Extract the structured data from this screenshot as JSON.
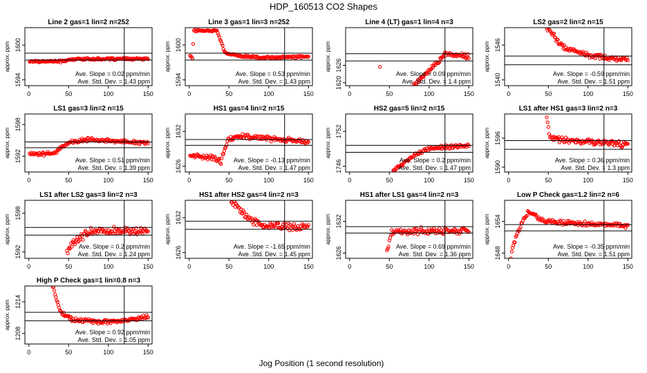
{
  "figure": {
    "title": "HDP_160513  CO2 Shapes",
    "xlabel": "Jog Position (1 second resolution)"
  },
  "style": {
    "point_color": "#ff0000",
    "line_color": "#000000"
  },
  "chart_data": [
    {
      "type": "scatter",
      "title": "Line 2 gas=1 lin=2 n=252",
      "ylabel": "approx. ppm",
      "xlim": [
        -5,
        155
      ],
      "ylim": [
        1593,
        1603
      ],
      "xticks": [
        0,
        50,
        100,
        150
      ],
      "yticks": [
        1594,
        1600
      ],
      "hlines": [
        1598.6,
        1597.4
      ],
      "vline": 120,
      "slope_text": "Ave. Slope = 0.02  ppm/min",
      "std_text": "Ave. Std. Dev. = 1.43 ppm",
      "series": [
        {
          "shape": "flat",
          "x0": 1,
          "x1": 150,
          "segments": [
            [
              0,
              1597.2
            ],
            [
              40,
              1597.2
            ],
            [
              60,
              1597.6
            ],
            [
              150,
              1597.6
            ]
          ],
          "noise": 0.15
        }
      ]
    },
    {
      "type": "scatter",
      "title": "Line 3 gas=1 lin=3 n=252",
      "ylabel": "approx. ppm",
      "xlim": [
        -5,
        155
      ],
      "ylim": [
        1593,
        1603
      ],
      "xticks": [
        0,
        50,
        100,
        150
      ],
      "yticks": [
        1594,
        1600
      ],
      "hlines": [
        1598.6,
        1597.4
      ],
      "vline": 120,
      "slope_text": "Ave. Slope = 0.53  ppm/min",
      "std_text": "Ave. Std. Dev. = 1.43 ppm",
      "series": [
        {
          "shape": "curve",
          "x0": 1,
          "x1": 150,
          "segments": [
            [
              1,
              1598.2
            ],
            [
              4,
              1597.8
            ],
            [
              6,
              1602.5
            ],
            [
              35,
              1602.5
            ],
            [
              45,
              1598.6
            ],
            [
              60,
              1598.2
            ],
            [
              90,
              1597.8
            ],
            [
              150,
              1598.0
            ]
          ],
          "noise": 0.15
        }
      ]
    },
    {
      "type": "scatter",
      "title": "Line 4 (LT) gas=1 lin=4 n=3",
      "ylabel": "approx. ppm",
      "xlim": [
        -5,
        155
      ],
      "ylim": [
        1619,
        1639
      ],
      "xticks": [
        0,
        50,
        100,
        150
      ],
      "yticks": [
        1620,
        1626
      ],
      "hlines": [
        1630.0,
        1627.5
      ],
      "vline": 120,
      "slope_text": "Ave. Slope = 0.09  ppm/min",
      "std_text": "Ave. Std. Dev. = 1.4 ppm",
      "series": [
        {
          "shape": "curve",
          "x0": 80,
          "x1": 150,
          "segments": [
            [
              80,
              1619
            ],
            [
              100,
              1624
            ],
            [
              120,
              1630
            ],
            [
              150,
              1629
            ]
          ],
          "noise": 0.7,
          "extra": [
            [
              38,
              1625.5
            ]
          ]
        }
      ]
    },
    {
      "type": "scatter",
      "title": "LS2 gas=2 lin=2 n=15",
      "ylabel": "approx. ppm",
      "xlim": [
        -5,
        155
      ],
      "ylim": [
        1539,
        1549
      ],
      "xticks": [
        0,
        50,
        100,
        150
      ],
      "yticks": [
        1540,
        1546
      ],
      "hlines": [
        1544.1,
        1542.6
      ],
      "vline": 120,
      "slope_text": "Ave. Slope = -0.59  ppm/min",
      "std_text": "Ave. Std. Dev. = 1.51 ppm",
      "series": [
        {
          "shape": "curve",
          "x0": 48,
          "x1": 150,
          "segments": [
            [
              48,
              1549
            ],
            [
              70,
              1545.5
            ],
            [
              100,
              1544.2
            ],
            [
              150,
              1543.4
            ]
          ],
          "noise": 0.35
        }
      ]
    },
    {
      "type": "scatter",
      "title": "LS1 gas=3 lin=2 n=15",
      "ylabel": "approx. ppm",
      "xlim": [
        -5,
        155
      ],
      "ylim": [
        1589,
        1600
      ],
      "xticks": [
        0,
        50,
        100,
        150
      ],
      "yticks": [
        1592,
        1598
      ],
      "hlines": [
        1594.7,
        1593.6
      ],
      "vline": 120,
      "slope_text": "Ave. Slope = 0.51  ppm/min",
      "std_text": "Ave. Std. Dev. = 1.39 ppm",
      "series": [
        {
          "shape": "curve",
          "x0": 1,
          "x1": 150,
          "segments": [
            [
              1,
              1592.5
            ],
            [
              30,
              1592.5
            ],
            [
              50,
              1594.6
            ],
            [
              75,
              1595.2
            ],
            [
              150,
              1594.5
            ]
          ],
          "noise": 0.3
        }
      ]
    },
    {
      "type": "scatter",
      "title": "HS1 gas=4 lin=2 n=15",
      "ylabel": "approx. ppm",
      "xlim": [
        -5,
        155
      ],
      "ylim": [
        1625,
        1635
      ],
      "xticks": [
        0,
        50,
        100,
        150
      ],
      "yticks": [
        1626,
        1632
      ],
      "hlines": [
        1630.6,
        1629.6
      ],
      "vline": 120,
      "slope_text": "Ave. Slope = -0.13  ppm/min",
      "std_text": "Ave. Std. Dev. = 1.47 ppm",
      "series": [
        {
          "shape": "curve",
          "x0": 1,
          "x1": 150,
          "segments": [
            [
              1,
              1627.8
            ],
            [
              30,
              1627.5
            ],
            [
              40,
              1626.8
            ],
            [
              48,
              1630.4
            ],
            [
              60,
              1631.2
            ],
            [
              150,
              1630.2
            ]
          ],
          "noise": 0.35
        }
      ]
    },
    {
      "type": "scatter",
      "title": "HS2 gas=5 lin=2 n=15",
      "ylabel": "approx. ppm",
      "xlim": [
        -5,
        155
      ],
      "ylim": [
        1745,
        1755
      ],
      "xticks": [
        0,
        50,
        100,
        150
      ],
      "yticks": [
        1746,
        1752
      ],
      "hlines": [
        1749.6,
        1748.4
      ],
      "vline": 120,
      "slope_text": "Ave. Slope = 0.2  ppm/min",
      "std_text": "Ave. Std. Dev. = 1.47 ppm",
      "series": [
        {
          "shape": "curve",
          "x0": 55,
          "x1": 150,
          "segments": [
            [
              55,
              1745.2
            ],
            [
              80,
              1747.8
            ],
            [
              100,
              1749.1
            ],
            [
              150,
              1749.6
            ]
          ],
          "noise": 0.25
        }
      ]
    },
    {
      "type": "scatter",
      "title": "LS1 after HS1 gas=3 lin=2 n=3",
      "ylabel": "approx. ppm",
      "xlim": [
        -5,
        155
      ],
      "ylim": [
        1589,
        1601
      ],
      "xticks": [
        0,
        50,
        100,
        150
      ],
      "yticks": [
        1590,
        1596
      ],
      "hlines": [
        1595.5,
        1593.7
      ],
      "vline": 120,
      "slope_text": "Ave. Slope = 0.36  ppm/min",
      "std_text": "Ave. Std. Dev. = 1.3 ppm",
      "series": [
        {
          "shape": "curve",
          "x0": 48,
          "x1": 150,
          "segments": [
            [
              48,
              1600
            ],
            [
              52,
              1596
            ],
            [
              70,
              1595.6
            ],
            [
              150,
              1594.6
            ]
          ],
          "noise": 0.5
        }
      ]
    },
    {
      "type": "scatter",
      "title": "LS1 after LS2 gas=3 lin=2 n=3",
      "ylabel": "approx. ppm",
      "xlim": [
        -5,
        155
      ],
      "ylim": [
        1591,
        1600
      ],
      "xticks": [
        0,
        50,
        100,
        150
      ],
      "yticks": [
        1592,
        1598
      ],
      "hlines": [
        1595.8,
        1594.6
      ],
      "vline": 120,
      "slope_text": "Ave. Slope = 0.2  ppm/min",
      "std_text": "Ave. Std. Dev. = 1.24 ppm",
      "series": [
        {
          "shape": "curve",
          "x0": 48,
          "x1": 150,
          "segments": [
            [
              48,
              1592
            ],
            [
              60,
              1594
            ],
            [
              80,
              1595.2
            ],
            [
              150,
              1595.2
            ]
          ],
          "noise": 0.55
        }
      ]
    },
    {
      "type": "scatter",
      "title": "HS1 after HS2 gas=4 lin=2 n=3",
      "ylabel": "approx. ppm",
      "xlim": [
        -5,
        155
      ],
      "ylim": [
        1625,
        1635
      ],
      "xticks": [
        0,
        50,
        100,
        150
      ],
      "yticks": [
        1626,
        1632
      ],
      "hlines": [
        1631.4,
        1630.0
      ],
      "vline": 120,
      "slope_text": "Ave. Slope = -1.65  ppm/min",
      "std_text": "Ave. Std. Dev. = 1.45 ppm",
      "series": [
        {
          "shape": "curve",
          "x0": 52,
          "x1": 150,
          "segments": [
            [
              52,
              1635
            ],
            [
              70,
              1632.3
            ],
            [
              95,
              1630.6
            ],
            [
              150,
              1630.3
            ]
          ],
          "noise": 0.5
        }
      ]
    },
    {
      "type": "scatter",
      "title": "HS1 after LS1 gas=4 lin=2 n=3",
      "ylabel": "approx. ppm",
      "xlim": [
        -5,
        155
      ],
      "ylim": [
        1625,
        1636
      ],
      "xticks": [
        0,
        50,
        100,
        150
      ],
      "yticks": [
        1626,
        1632
      ],
      "hlines": [
        1631.0,
        1629.8
      ],
      "vline": 120,
      "slope_text": "Ave. Slope = 0.69  ppm/min",
      "std_text": "Ave. Std. Dev. = 1.36 ppm",
      "series": [
        {
          "shape": "curve",
          "x0": 47,
          "x1": 150,
          "segments": [
            [
              47,
              1626
            ],
            [
              52,
              1630
            ],
            [
              150,
              1630.3
            ]
          ],
          "noise": 0.55
        }
      ]
    },
    {
      "type": "scatter",
      "title": "Low P Check gas=1.2 lin=2 n=6",
      "ylabel": "approx. ppm",
      "xlim": [
        -5,
        155
      ],
      "ylim": [
        1647,
        1658
      ],
      "xticks": [
        0,
        50,
        100,
        150
      ],
      "yticks": [
        1648,
        1654
      ],
      "hlines": [
        1653.4,
        1652.2
      ],
      "vline": 120,
      "slope_text": "Ave. Slope = -0.35  ppm/min",
      "std_text": "Ave. Std. Dev. = 1.51 ppm",
      "series": [
        {
          "shape": "curve",
          "x0": 3,
          "x1": 150,
          "segments": [
            [
              3,
              1647.5
            ],
            [
              10,
              1651.5
            ],
            [
              25,
              1656
            ],
            [
              40,
              1654.2
            ],
            [
              60,
              1653.8
            ],
            [
              150,
              1653.2
            ]
          ],
          "noise": 0.35
        }
      ]
    },
    {
      "type": "scatter",
      "title": "High P Check gas=1 lin=0.8 n=3",
      "ylabel": "approx. ppm",
      "xlim": [
        -5,
        155
      ],
      "ylim": [
        1206,
        1217
      ],
      "xticks": [
        0,
        50,
        100,
        150
      ],
      "yticks": [
        1208,
        1214
      ],
      "hlines": [
        1212.0,
        1210.4
      ],
      "vline": 120,
      "slope_text": "Ave. Slope = 0.92  ppm/min",
      "std_text": "Ave. Std. Dev. = 1.05 ppm",
      "series": [
        {
          "shape": "curve",
          "x0": 30,
          "x1": 150,
          "segments": [
            [
              30,
              1217
            ],
            [
              40,
              1212
            ],
            [
              55,
              1210.6
            ],
            [
              90,
              1210.2
            ],
            [
              120,
              1210.4
            ],
            [
              150,
              1211.2
            ]
          ],
          "noise": 0.3
        }
      ]
    }
  ]
}
